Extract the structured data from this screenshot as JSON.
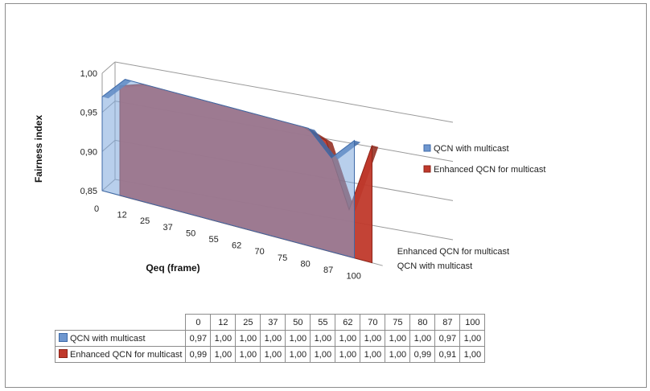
{
  "chart_data": {
    "type": "area",
    "title": "",
    "xlabel": "Qeq (frame)",
    "ylabel": "Fairness index",
    "ylim": [
      0.85,
      1.0
    ],
    "yticks": [
      "0,85",
      "0,90",
      "0,95",
      "1,00"
    ],
    "categories": [
      "0",
      "12",
      "25",
      "37",
      "50",
      "55",
      "62",
      "70",
      "75",
      "80",
      "87",
      "100"
    ],
    "series": [
      {
        "name": "QCN with multicast",
        "color": "#6f97cf",
        "values": [
          0.97,
          1.0,
          1.0,
          1.0,
          1.0,
          1.0,
          1.0,
          1.0,
          1.0,
          1.0,
          0.97,
          1.0
        ],
        "labels": [
          "0,97",
          "1,00",
          "1,00",
          "1,00",
          "1,00",
          "1,00",
          "1,00",
          "1,00",
          "1,00",
          "1,00",
          "0,97",
          "1,00"
        ]
      },
      {
        "name": "Enhanced QCN for multicast",
        "color": "#c0392b",
        "values": [
          0.99,
          1.0,
          1.0,
          1.0,
          1.0,
          1.0,
          1.0,
          1.0,
          1.0,
          0.99,
          0.91,
          1.0
        ],
        "labels": [
          "0,99",
          "1,00",
          "1,00",
          "1,00",
          "1,00",
          "1,00",
          "1,00",
          "1,00",
          "1,00",
          "0,99",
          "0,91",
          "1,00"
        ]
      }
    ],
    "depth_labels": [
      "Enhanced QCN for multicast",
      "QCN with multicast"
    ],
    "legend_position": "right",
    "data_table": true,
    "grid": true
  }
}
